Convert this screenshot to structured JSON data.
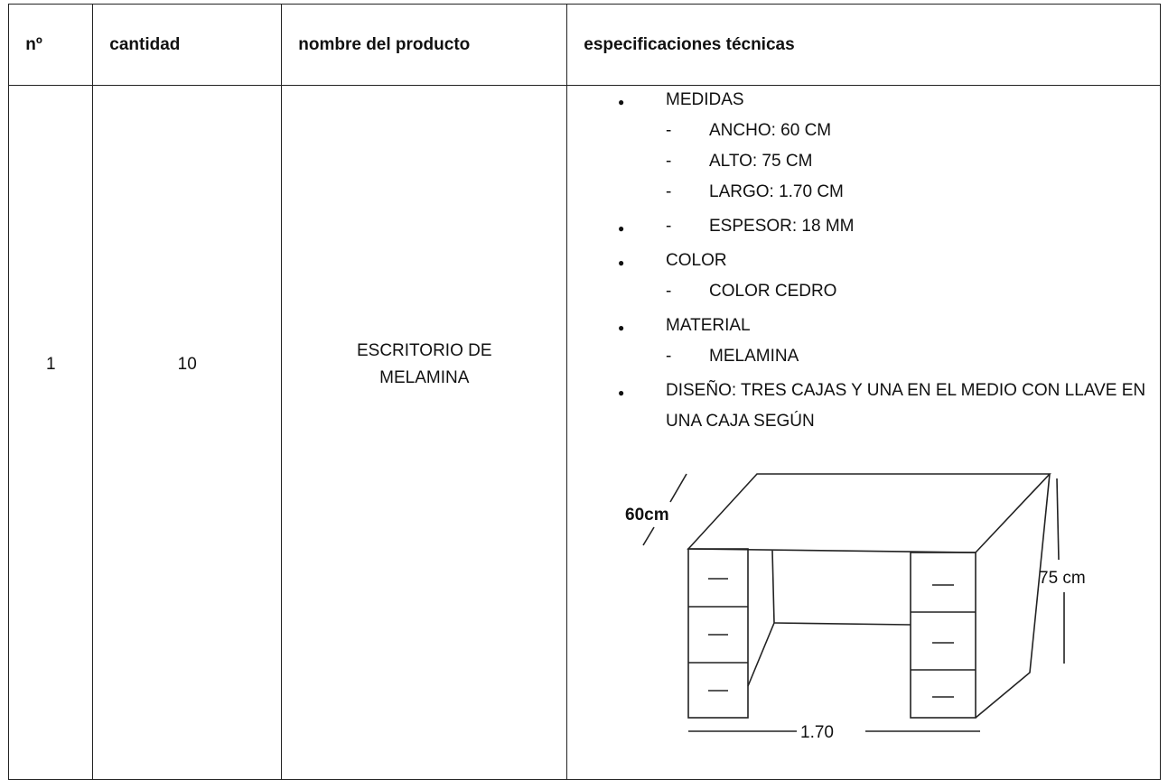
{
  "table": {
    "headers": [
      "nº",
      "cantidad",
      "nombre del producto",
      "especificaciones técnicas"
    ],
    "rows": [
      [
        "1",
        "10",
        "ESCRITORIO DE MELAMINA",
        {
          "items": [
            {
              "text": "MEDIDAS",
              "sub": [
                "ANCHO: 60 CM",
                "ALTO: 75 CM",
                "LARGO: 1.70 CM"
              ]
            },
            {
              "sub": [
                "ESPESOR: 18 MM"
              ]
            },
            {
              "text": "COLOR",
              "sub": [
                "COLOR CEDRO"
              ]
            },
            {
              "text": "MATERIAL",
              "sub": [
                "MELAMINA"
              ]
            },
            {
              "text": "DISEÑO: TRES CAJAS Y UNA EN EL MEDIO CON LLAVE EN UNA CAJA SEGÚN",
              "sub": []
            }
          ],
          "drawing": {
            "depth": "60cm",
            "height": "75 cm",
            "length": "1.70"
          }
        }
      ]
    ]
  }
}
